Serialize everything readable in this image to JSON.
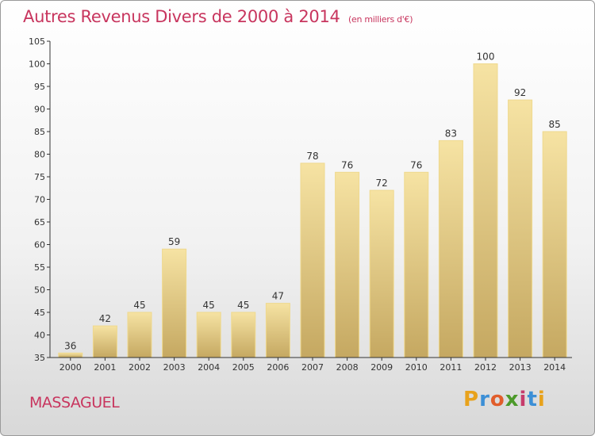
{
  "header": {
    "title": "Autres Revenus Divers de 2000 à 2014",
    "unit": "(en milliers d'€)"
  },
  "commune": "MASSAGUEL",
  "brand": {
    "letters": [
      "P",
      "r",
      "o",
      "x",
      "i",
      "t",
      "i"
    ],
    "colors": [
      "#e8a21c",
      "#3c8fd6",
      "#e15d2b",
      "#4c9a2a",
      "#c63b6b",
      "#3c8fd6",
      "#e8a21c"
    ]
  },
  "colors": {
    "title": "#c8355e",
    "bar_light": "#f6e3a3",
    "bar_dark": "#c5a861",
    "axis": "#333333"
  },
  "chart_data": {
    "type": "bar",
    "title": "Autres Revenus Divers de 2000 à 2014",
    "categories": [
      "2000",
      "2001",
      "2002",
      "2003",
      "2004",
      "2005",
      "2006",
      "2007",
      "2008",
      "2009",
      "2010",
      "2011",
      "2012",
      "2013",
      "2014"
    ],
    "values": [
      36,
      42,
      45,
      59,
      45,
      45,
      47,
      78,
      76,
      72,
      76,
      83,
      100,
      92,
      85
    ],
    "ylim": [
      35,
      105
    ],
    "yticks": [
      35,
      40,
      45,
      50,
      55,
      60,
      65,
      70,
      75,
      80,
      85,
      90,
      95,
      100,
      105
    ],
    "grid": false,
    "xlabel": "",
    "ylabel": ""
  }
}
